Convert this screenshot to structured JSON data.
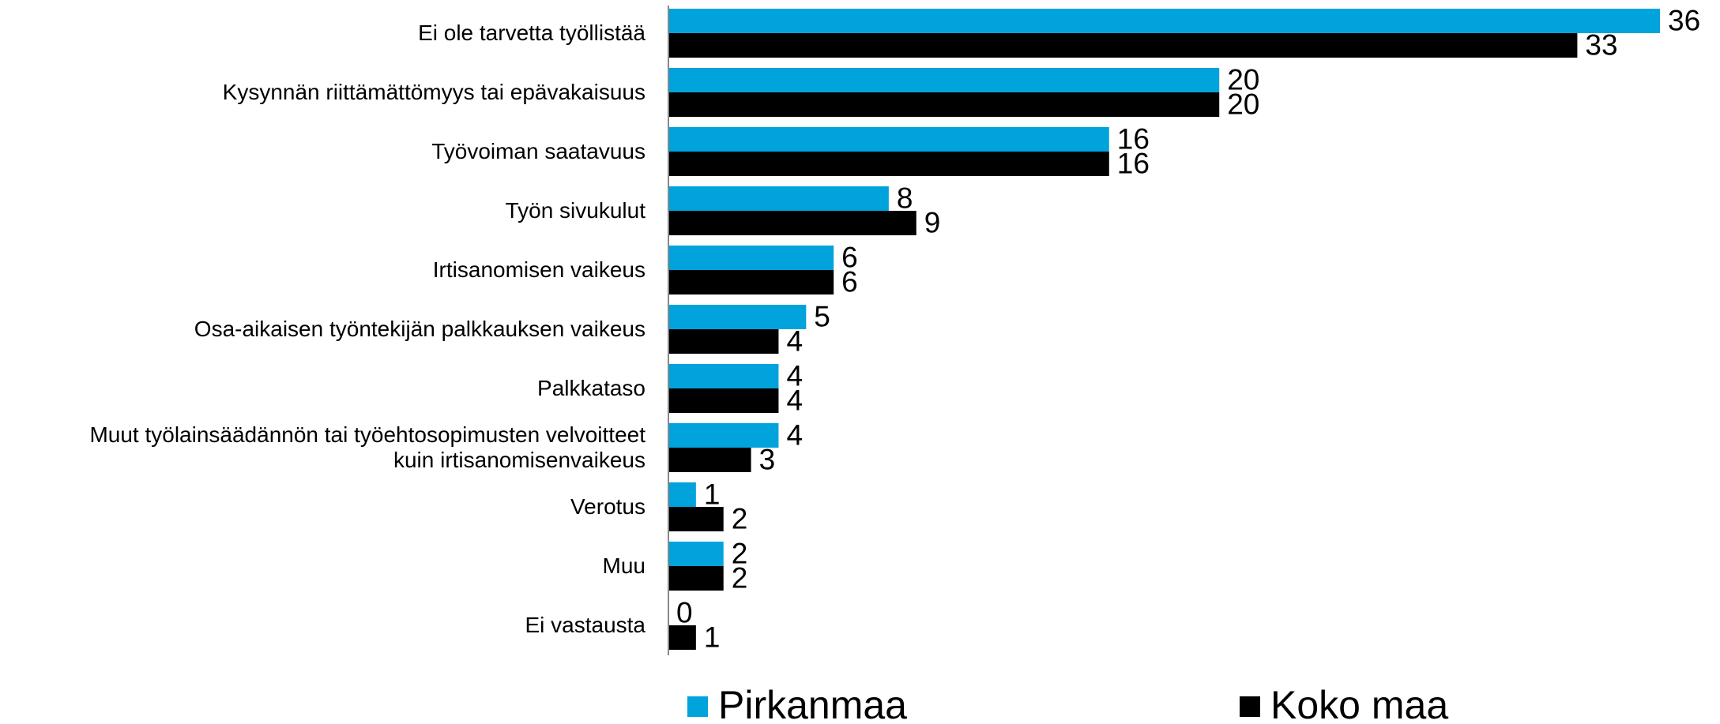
{
  "chart_data": {
    "type": "bar",
    "orientation": "horizontal",
    "categories": [
      "Ei ole tarvetta työllistää",
      "Kysynnän riittämättömyys tai epävakaisuus",
      "Työvoiman saatavuus",
      "Työn sivukulut",
      "Irtisanomisen vaikeus",
      "Osa-aikaisen työntekijän palkkauksen vaikeus",
      "Palkkataso",
      "Muut työlainsäädännön tai työehtosopimusten velvoitteet\nkuin irtisanomisenvaikeus",
      "Verotus",
      "Muu",
      "Ei vastausta"
    ],
    "series": [
      {
        "name": "Pirkanmaa",
        "color": "#00a3dc",
        "values": [
          36,
          20,
          16,
          8,
          6,
          5,
          4,
          4,
          1,
          2,
          0
        ]
      },
      {
        "name": "Koko maa",
        "color": "#000000",
        "values": [
          33,
          20,
          16,
          9,
          6,
          4,
          4,
          3,
          2,
          2,
          1
        ]
      }
    ],
    "xlim": [
      0,
      36
    ],
    "legend": "bottom"
  }
}
